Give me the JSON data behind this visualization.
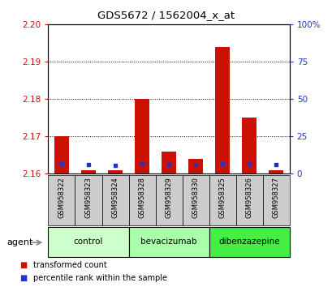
{
  "title": "GDS5672 / 1562004_x_at",
  "samples": [
    "GSM958322",
    "GSM958323",
    "GSM958324",
    "GSM958328",
    "GSM958329",
    "GSM958330",
    "GSM958325",
    "GSM958326",
    "GSM958327"
  ],
  "red_values": [
    2.17,
    2.161,
    2.161,
    2.18,
    2.166,
    2.164,
    2.194,
    2.175,
    2.161
  ],
  "blue_percentiles": [
    6.5,
    6.0,
    5.5,
    6.5,
    6.0,
    6.0,
    6.5,
    6.5,
    6.0
  ],
  "y_min": 2.16,
  "y_max": 2.2,
  "y_ticks": [
    2.16,
    2.17,
    2.18,
    2.19,
    2.2
  ],
  "right_y_ticks": [
    0,
    25,
    50,
    75,
    100
  ],
  "right_y_tick_labels": [
    "0",
    "25",
    "50",
    "75",
    "100%"
  ],
  "groups": [
    {
      "label": "control",
      "indices": [
        0,
        1,
        2
      ],
      "color": "#ccffcc"
    },
    {
      "label": "bevacizumab",
      "indices": [
        3,
        4,
        5
      ],
      "color": "#ccffcc"
    },
    {
      "label": "dibenzazepine",
      "indices": [
        6,
        7,
        8
      ],
      "color": "#44ee44"
    }
  ],
  "bar_color": "#cc1100",
  "marker_color": "#2233cc",
  "bar_width": 0.55,
  "agent_label": "agent",
  "legend_red": "transformed count",
  "legend_blue": "percentile rank within the sample",
  "background_color": "#ffffff",
  "plot_bg": "#ffffff",
  "tick_color_left": "#cc1100",
  "tick_color_right": "#2233cc",
  "label_area_bg": "#cccccc",
  "title_fontsize": 9.5
}
